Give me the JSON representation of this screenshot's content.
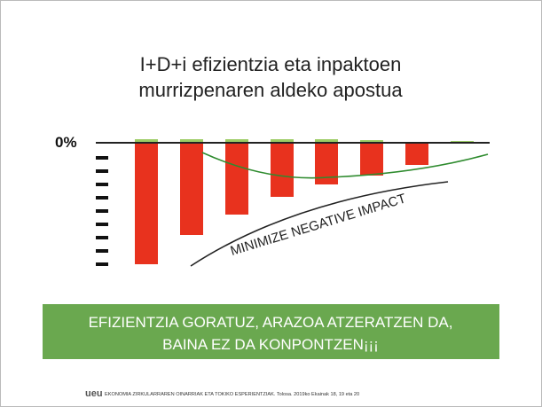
{
  "slide": {
    "title": [
      "I+D+i efizientzia eta inpaktoen",
      "murrizpenaren aldeko apostua"
    ],
    "figure": {
      "axis_label": "0%",
      "annotation": "MINIMIZE NEGATIVE IMPACT"
    },
    "banner": [
      "EFIZIENTZIA GORATUZ, ARAZOA ATZERATZEN DA,",
      "BAINA EZ DA KONPONTZEN¡¡¡"
    ],
    "footer": {
      "logo": "ueu",
      "text": "EKONOMIA ZIRKULARRAREN OINARRIAK ETA TOKIKO ESPERIENTZIAK. Tolosa. 2019ko Ekainak 18, 19 eta 20"
    }
  }
}
